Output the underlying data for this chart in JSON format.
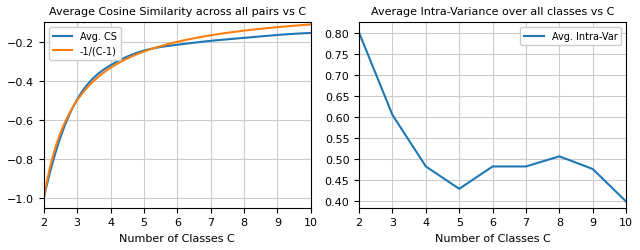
{
  "left_title": "Average Cosine Similarity across all pairs vs C",
  "right_title": "Average Intra-Variance over all classes vs C",
  "xlabel": "Number of Classes C",
  "C_values": [
    2,
    3,
    4,
    5,
    6,
    7,
    8,
    9,
    10
  ],
  "avg_cs": [
    -1.0,
    -0.495,
    -0.32,
    -0.245,
    -0.215,
    -0.195,
    -0.18,
    -0.165,
    -0.155
  ],
  "intra_var": [
    0.8,
    0.605,
    0.483,
    0.43,
    0.483,
    0.483,
    0.507,
    0.477,
    0.4
  ],
  "color_blue": "#1f77b4",
  "color_orange": "#ff7f0e",
  "legend_left_labels": [
    "Avg. CS",
    "-1/(C-1)"
  ],
  "legend_right_label": "Avg. Intra-Var",
  "left_ylim": [
    -1.05,
    -0.1
  ],
  "right_ylim": [
    0.385,
    0.825
  ],
  "left_yticks": [
    -1.0,
    -0.8,
    -0.6,
    -0.4,
    -0.2
  ],
  "right_yticks": [
    0.4,
    0.45,
    0.5,
    0.55,
    0.6,
    0.65,
    0.7,
    0.75,
    0.8
  ],
  "xticks": [
    2,
    3,
    4,
    5,
    6,
    7,
    8,
    9,
    10
  ],
  "left_xlim": [
    2,
    10
  ],
  "right_xlim": [
    2,
    10
  ]
}
